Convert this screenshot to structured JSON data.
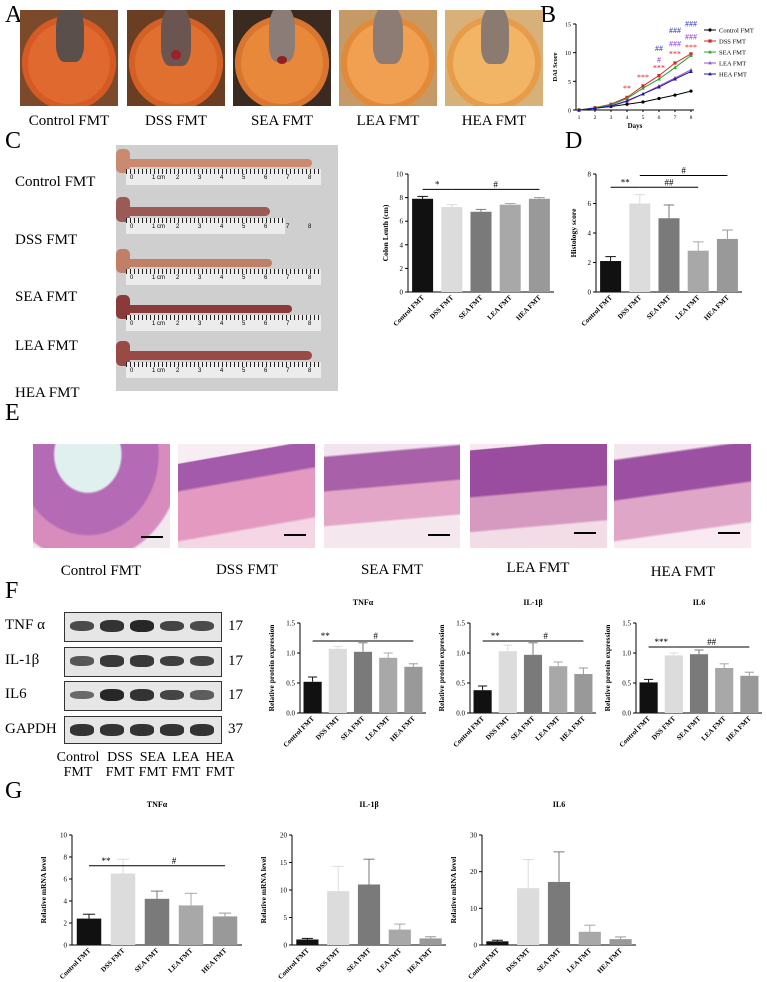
{
  "panels": {
    "A": "A",
    "B": "B",
    "C": "C",
    "D": "D",
    "E": "E",
    "F": "F",
    "G": "G"
  },
  "groups": [
    "Control FMT",
    "DSS FMT",
    "SEA FMT",
    "LEA FMT",
    "HEA FMT"
  ],
  "panel_f": {
    "proteins": [
      "TNF α",
      "IL-1β",
      "IL6",
      "GAPDH"
    ],
    "sizes": [
      "17",
      "17",
      "17",
      "37"
    ],
    "lanes": [
      {
        "l1": "Control",
        "l2": "FMT"
      },
      {
        "l1": "DSS",
        "l2": "FMT"
      },
      {
        "l1": "SEA",
        "l2": "FMT"
      },
      {
        "l1": "LEA",
        "l2": "FMT"
      },
      {
        "l1": "HEA",
        "l2": "FMT"
      }
    ]
  },
  "ruler": {
    "label": "1 cm",
    "ticks": [
      "0",
      "2",
      "3",
      "4",
      "5",
      "6",
      "7",
      "8"
    ]
  },
  "colors": {
    "control": "#111111",
    "dss": "#dcdcdc",
    "sea": "#7a7a7a",
    "lea": "#a8a8a8",
    "hea": "#999999",
    "dai_control": "#000000",
    "dai_dss": "#d62728",
    "dai_sea": "#2ca02c",
    "dai_lea": "#9a4dcc",
    "dai_hea": "#1a1a9a",
    "sig_red": "#e0201a",
    "sig_purple": "#8a2be2",
    "sig_blue": "#1f2fbf"
  },
  "chart_data": [
    {
      "id": "B",
      "type": "line",
      "ylabel": "DAI Score",
      "xlabel": "Days",
      "x": [
        1,
        2,
        3,
        4,
        5,
        6,
        7,
        8
      ],
      "ylim": [
        0,
        15
      ],
      "yticks": [
        0,
        5,
        10,
        15
      ],
      "series": [
        {
          "name": "Control FMT",
          "values": [
            0,
            0.3,
            0.6,
            1.0,
            1.4,
            2.0,
            2.6,
            3.3
          ]
        },
        {
          "name": "DSS FMT",
          "values": [
            0,
            0.4,
            1.0,
            2.2,
            4.2,
            6.0,
            8.2,
            9.8
          ]
        },
        {
          "name": "SEA FMT",
          "values": [
            0,
            0.4,
            0.9,
            2.0,
            3.8,
            5.4,
            7.4,
            9.5
          ]
        },
        {
          "name": "LEA FMT",
          "values": [
            0,
            0.3,
            0.7,
            1.5,
            2.8,
            4.2,
            5.6,
            7.0
          ]
        },
        {
          "name": "HEA FMT",
          "values": [
            0,
            0.3,
            0.7,
            1.6,
            2.8,
            4.0,
            5.4,
            6.7
          ]
        }
      ],
      "annotations": [
        {
          "text": "**",
          "x": 4,
          "y": 3.3,
          "color": "sig_red"
        },
        {
          "text": "***",
          "x": 5,
          "y": 5.2,
          "color": "sig_red"
        },
        {
          "text": "#",
          "x": 6,
          "y": 8.3,
          "color": "sig_purple"
        },
        {
          "text": "***",
          "x": 6,
          "y": 6.9,
          "color": "sig_red"
        },
        {
          "text": "##",
          "x": 6,
          "y": 10.3,
          "color": "sig_blue"
        },
        {
          "text": "###",
          "x": 7,
          "y": 11.1,
          "color": "sig_purple"
        },
        {
          "text": "***",
          "x": 7,
          "y": 9.3,
          "color": "sig_red"
        },
        {
          "text": "###",
          "x": 7,
          "y": 13.4,
          "color": "sig_blue"
        },
        {
          "text": "###",
          "x": 8,
          "y": 12.3,
          "color": "sig_purple"
        },
        {
          "text": "***",
          "x": 8,
          "y": 10.5,
          "color": "sig_red"
        },
        {
          "text": "###",
          "x": 8,
          "y": 14.6,
          "color": "sig_blue"
        }
      ]
    },
    {
      "id": "C",
      "type": "bar",
      "ylabel": "Colon Lenth (cm)",
      "categories": [
        "Control FMT",
        "DSS FMT",
        "SEA FMT",
        "LEA FMT",
        "HEA FMT"
      ],
      "values": [
        7.9,
        7.2,
        6.8,
        7.4,
        7.9
      ],
      "errors": [
        0.2,
        0.2,
        0.2,
        0.1,
        0.1
      ],
      "ylim": [
        0,
        10
      ],
      "yticks": [
        0,
        2,
        4,
        6,
        8,
        10
      ],
      "brackets": [
        {
          "from": 0,
          "to": 1,
          "y": 8.7,
          "text": "*"
        },
        {
          "from": 1,
          "to": 4,
          "y": 8.7,
          "text": "#"
        }
      ]
    },
    {
      "id": "D",
      "type": "bar",
      "ylabel": "Histology score",
      "categories": [
        "Control FMT",
        "DSS FMT",
        "SEA FMT",
        "LEA FMT",
        "HEA FMT"
      ],
      "values": [
        2.1,
        6.0,
        5.0,
        2.8,
        3.6
      ],
      "errors": [
        0.3,
        0.6,
        0.9,
        0.6,
        0.6
      ],
      "ylim": [
        0,
        8
      ],
      "yticks": [
        0,
        2,
        4,
        6,
        8
      ],
      "brackets": [
        {
          "from": 0,
          "to": 1,
          "y": 7.1,
          "text": "**"
        },
        {
          "from": 1,
          "to": 3,
          "y": 7.1,
          "text": "##"
        },
        {
          "from": 1,
          "to": 4,
          "y": 7.9,
          "text": "#"
        }
      ]
    },
    {
      "id": "F1",
      "type": "bar",
      "title": "TNFα",
      "ylabel": "Relative protein expression",
      "categories": [
        "Control FMT",
        "DSS FMT",
        "SEA FMT",
        "LEA FMT",
        "HEA FMT"
      ],
      "values": [
        0.52,
        1.07,
        1.02,
        0.92,
        0.77
      ],
      "errors": [
        0.08,
        0.04,
        0.15,
        0.08,
        0.05
      ],
      "ylim": [
        0,
        1.5
      ],
      "yticks": [
        0.0,
        0.5,
        1.0,
        1.5
      ],
      "brackets": [
        {
          "from": 0,
          "to": 1,
          "y": 1.2,
          "text": "**"
        },
        {
          "from": 1,
          "to": 4,
          "y": 1.2,
          "text": "#"
        }
      ]
    },
    {
      "id": "F2",
      "type": "bar",
      "title": "IL-1β",
      "ylabel": "Relative protein expression",
      "categories": [
        "Control FMT",
        "DSS FMT",
        "SEA FMT",
        "LEA FMT",
        "HEA FMT"
      ],
      "values": [
        0.38,
        1.03,
        0.97,
        0.78,
        0.65
      ],
      "errors": [
        0.07,
        0.1,
        0.2,
        0.07,
        0.1
      ],
      "ylim": [
        0,
        1.5
      ],
      "yticks": [
        0.0,
        0.5,
        1.0,
        1.5
      ],
      "brackets": [
        {
          "from": 0,
          "to": 1,
          "y": 1.2,
          "text": "**"
        },
        {
          "from": 1,
          "to": 4,
          "y": 1.2,
          "text": "#"
        }
      ]
    },
    {
      "id": "F3",
      "type": "bar",
      "title": "IL6",
      "ylabel": "Relative protein expression",
      "categories": [
        "Control FMT",
        "DSS FMT",
        "SEA FMT",
        "LEA FMT",
        "HEA FMT"
      ],
      "values": [
        0.51,
        0.96,
        0.98,
        0.75,
        0.62
      ],
      "errors": [
        0.05,
        0.04,
        0.07,
        0.07,
        0.06
      ],
      "ylim": [
        0,
        1.5
      ],
      "yticks": [
        0.0,
        0.5,
        1.0,
        1.5
      ],
      "brackets": [
        {
          "from": 0,
          "to": 1,
          "y": 1.1,
          "text": "***"
        },
        {
          "from": 1,
          "to": 4,
          "y": 1.1,
          "text": "##"
        }
      ]
    },
    {
      "id": "G1",
      "type": "bar",
      "title": "TNFα",
      "ylabel": "Relative mRNA level",
      "categories": [
        "Control FMT",
        "DSS FMT",
        "SEA FMT",
        "LEA FMT",
        "HEA FMT"
      ],
      "values": [
        2.4,
        6.5,
        4.2,
        3.6,
        2.6
      ],
      "errors": [
        0.4,
        1.3,
        0.7,
        1.1,
        0.3
      ],
      "ylim": [
        0,
        10
      ],
      "yticks": [
        0,
        2,
        4,
        6,
        8,
        10
      ],
      "brackets": [
        {
          "from": 0,
          "to": 1,
          "y": 7.2,
          "text": "**"
        },
        {
          "from": 1,
          "to": 4,
          "y": 7.2,
          "text": "#"
        }
      ]
    },
    {
      "id": "G2",
      "type": "bar",
      "title": "IL-1β",
      "ylabel": "Relative mRNA level",
      "categories": [
        "Control FMT",
        "DSS FMT",
        "SEA FMT",
        "LEA FMT",
        "HEA FMT"
      ],
      "values": [
        1.0,
        9.8,
        11.0,
        2.8,
        1.2
      ],
      "errors": [
        0.2,
        4.5,
        4.6,
        1.0,
        0.3
      ],
      "ylim": [
        0,
        20
      ],
      "yticks": [
        0,
        5,
        10,
        15,
        20
      ],
      "brackets": []
    },
    {
      "id": "G3",
      "type": "bar",
      "title": "IL6",
      "ylabel": "Relative mRNA level",
      "categories": [
        "Control FMT",
        "DSS FMT",
        "SEA FMT",
        "LEA FMT",
        "HEA FMT"
      ],
      "values": [
        1.0,
        15.5,
        17.2,
        3.6,
        1.6
      ],
      "errors": [
        0.3,
        7.8,
        8.2,
        1.8,
        0.6
      ],
      "ylim": [
        0,
        30
      ],
      "yticks": [
        0,
        10,
        20,
        30
      ],
      "brackets": []
    }
  ]
}
